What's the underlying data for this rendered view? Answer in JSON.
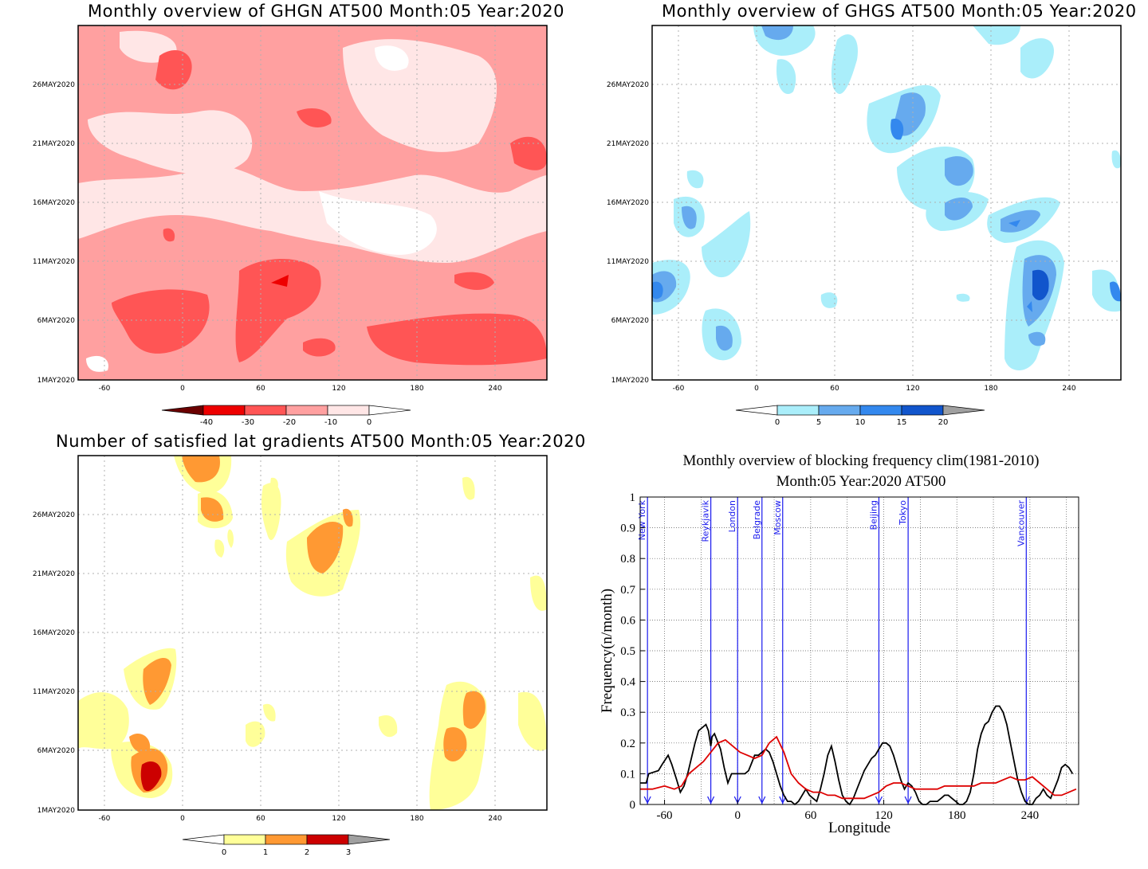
{
  "panels": {
    "ghgn": {
      "title": "Monthly overview of GHGN AT500 Month:05 Year:2020",
      "ylabels": [
        "26MAY2020",
        "21MAY2020",
        "16MAY2020",
        "11MAY2020",
        "6MAY2020",
        "1MAY2020"
      ],
      "xlabels": [
        "-60",
        "0",
        "60",
        "120",
        "180",
        "240"
      ],
      "colorbar": {
        "labels": [
          "-40",
          "-30",
          "-20",
          "-10",
          "0"
        ],
        "colors": [
          "#6b0000",
          "#ee0000",
          "#ff5555",
          "#ffa0a0",
          "#ffe6e6",
          "#ffffff"
        ]
      }
    },
    "ghgs": {
      "title": "Monthly overview of GHGS AT500 Month:05 Year:2020",
      "ylabels": [
        "26MAY2020",
        "21MAY2020",
        "16MAY2020",
        "11MAY2020",
        "6MAY2020",
        "1MAY2020"
      ],
      "xlabels": [
        "-60",
        "0",
        "60",
        "120",
        "180",
        "240"
      ],
      "colorbar": {
        "labels": [
          "0",
          "5",
          "10",
          "15",
          "20"
        ],
        "colors": [
          "#ffffff",
          "#aaeefa",
          "#66aaee",
          "#3388ee",
          "#1155cc",
          "#a0a0a0"
        ]
      }
    },
    "latgrad": {
      "title": "Number of satisfied lat gradients AT500 Month:05 Year:2020",
      "ylabels": [
        "26MAY2020",
        "21MAY2020",
        "16MAY2020",
        "11MAY2020",
        "6MAY2020",
        "1MAY2020"
      ],
      "xlabels": [
        "-60",
        "0",
        "60",
        "120",
        "180",
        "240"
      ],
      "colorbar": {
        "labels": [
          "0",
          "1",
          "2",
          "3"
        ],
        "colors": [
          "#ffffff",
          "#ffff99",
          "#ff9933",
          "#cc0000",
          "#a0a0a0"
        ]
      }
    },
    "blocking": {
      "title_line1": "Monthly overview of blocking frequency clim(1981-2010)",
      "title_line2": "Month:05 Year:2020  AT500"
    }
  },
  "chart_data": [
    {
      "type": "heatmap",
      "title": "Monthly overview of GHGN AT500 Month:05 Year:2020",
      "x_ticks": [
        -60,
        0,
        60,
        120,
        180,
        240
      ],
      "xlim": [
        -80,
        280
      ],
      "y_ticks": [
        "1MAY2020",
        "6MAY2020",
        "11MAY2020",
        "16MAY2020",
        "21MAY2020",
        "26MAY2020"
      ],
      "levels": [
        -40,
        -30,
        -20,
        -10,
        0
      ]
    },
    {
      "type": "heatmap",
      "title": "Monthly overview of GHGS AT500 Month:05 Year:2020",
      "x_ticks": [
        -60,
        0,
        60,
        120,
        180,
        240
      ],
      "xlim": [
        -80,
        280
      ],
      "y_ticks": [
        "1MAY2020",
        "6MAY2020",
        "11MAY2020",
        "16MAY2020",
        "21MAY2020",
        "26MAY2020"
      ],
      "levels": [
        0,
        5,
        10,
        15,
        20
      ]
    },
    {
      "type": "heatmap",
      "title": "Number of satisfied lat gradients AT500 Month:05 Year:2020",
      "x_ticks": [
        -60,
        0,
        60,
        120,
        180,
        240
      ],
      "xlim": [
        -80,
        280
      ],
      "y_ticks": [
        "1MAY2020",
        "6MAY2020",
        "11MAY2020",
        "16MAY2020",
        "21MAY2020",
        "26MAY2020"
      ],
      "levels": [
        0,
        1,
        2,
        3
      ]
    },
    {
      "type": "line",
      "title": "Monthly overview of blocking frequency clim(1981-2010) Month:05 Year:2020  AT500",
      "xlabel": "Longitude",
      "ylabel": "Frequency(n/month)",
      "xlim": [
        -80,
        280
      ],
      "ylim": [
        0,
        1
      ],
      "x_ticks": [
        -60,
        0,
        60,
        120,
        180,
        240
      ],
      "y_ticks": [
        0,
        0.1,
        0.2,
        0.3,
        0.4,
        0.5,
        0.6,
        0.7,
        0.8,
        0.9,
        1
      ],
      "grid": true,
      "cities": [
        {
          "name": "New York",
          "lon": -74
        },
        {
          "name": "Reykjavik",
          "lon": -22
        },
        {
          "name": "London",
          "lon": 0
        },
        {
          "name": "Belgrade",
          "lon": 20
        },
        {
          "name": "Moscow",
          "lon": 37
        },
        {
          "name": "Beijing",
          "lon": 116
        },
        {
          "name": "Tokyo",
          "lon": 140
        },
        {
          "name": "Vancouver",
          "lon": 237
        }
      ],
      "series": [
        {
          "color": "#000000",
          "x": [
            -80,
            -75,
            -73,
            -65,
            -62,
            -57,
            -54,
            -50,
            -47,
            -44,
            -41,
            -38,
            -35,
            -32,
            -29,
            -26,
            -24,
            -22,
            -21,
            -19,
            -17,
            -14,
            -11,
            -8,
            -5,
            -2,
            0,
            3,
            6,
            9,
            12,
            14,
            17,
            20,
            23,
            26,
            29,
            32,
            35,
            38,
            41,
            44,
            47,
            50,
            53,
            56,
            59,
            62,
            65,
            68,
            71,
            74,
            77,
            80,
            83,
            86,
            89,
            92,
            95,
            98,
            101,
            104,
            107,
            110,
            113,
            116,
            119,
            122,
            125,
            128,
            131,
            134,
            137,
            140,
            143,
            146,
            149,
            152,
            155,
            158,
            161,
            164,
            167,
            170,
            173,
            176,
            179,
            182,
            185,
            188,
            191,
            194,
            197,
            200,
            203,
            206,
            209,
            212,
            215,
            218,
            221,
            224,
            227,
            230,
            233,
            236,
            239,
            242,
            245,
            248,
            251,
            254,
            257,
            260,
            263,
            266,
            269,
            272,
            275
          ],
          "y": [
            0.07,
            0.07,
            0.1,
            0.11,
            0.13,
            0.16,
            0.13,
            0.08,
            0.04,
            0.06,
            0.1,
            0.15,
            0.2,
            0.24,
            0.25,
            0.26,
            0.24,
            0.19,
            0.22,
            0.23,
            0.21,
            0.18,
            0.12,
            0.07,
            0.1,
            0.1,
            0.1,
            0.1,
            0.1,
            0.11,
            0.14,
            0.16,
            0.16,
            0.17,
            0.18,
            0.17,
            0.14,
            0.1,
            0.06,
            0.03,
            0.01,
            0.01,
            0.0,
            0.01,
            0.03,
            0.05,
            0.03,
            0.02,
            0.01,
            0.05,
            0.1,
            0.16,
            0.19,
            0.14,
            0.08,
            0.03,
            0.01,
            0.0,
            0.02,
            0.05,
            0.08,
            0.11,
            0.13,
            0.15,
            0.16,
            0.18,
            0.2,
            0.2,
            0.19,
            0.16,
            0.12,
            0.08,
            0.05,
            0.07,
            0.06,
            0.04,
            0.01,
            0.0,
            0.0,
            0.01,
            0.01,
            0.01,
            0.02,
            0.03,
            0.03,
            0.02,
            0.01,
            0.0,
            0.0,
            0.01,
            0.04,
            0.1,
            0.18,
            0.23,
            0.26,
            0.27,
            0.3,
            0.32,
            0.32,
            0.3,
            0.26,
            0.2,
            0.14,
            0.08,
            0.04,
            0.01,
            0.0,
            0.0,
            0.02,
            0.03,
            0.05,
            0.03,
            0.02,
            0.05,
            0.08,
            0.12,
            0.13,
            0.12,
            0.1
          ]
        },
        {
          "color": "#dd0000",
          "x": [
            -80,
            -70,
            -60,
            -52,
            -46,
            -40,
            -34,
            -28,
            -22,
            -16,
            -10,
            -4,
            2,
            8,
            14,
            20,
            26,
            32,
            38,
            44,
            50,
            56,
            62,
            68,
            74,
            80,
            86,
            92,
            98,
            104,
            110,
            116,
            122,
            128,
            134,
            140,
            146,
            152,
            158,
            164,
            170,
            176,
            182,
            188,
            194,
            200,
            206,
            212,
            218,
            224,
            230,
            236,
            242,
            248,
            254,
            260,
            266,
            272,
            278
          ],
          "y": [
            0.05,
            0.05,
            0.06,
            0.05,
            0.06,
            0.1,
            0.12,
            0.14,
            0.17,
            0.2,
            0.21,
            0.19,
            0.17,
            0.16,
            0.15,
            0.16,
            0.2,
            0.22,
            0.17,
            0.1,
            0.07,
            0.05,
            0.04,
            0.04,
            0.03,
            0.03,
            0.02,
            0.02,
            0.02,
            0.02,
            0.03,
            0.04,
            0.06,
            0.07,
            0.07,
            0.06,
            0.05,
            0.05,
            0.05,
            0.05,
            0.06,
            0.06,
            0.06,
            0.06,
            0.06,
            0.07,
            0.07,
            0.07,
            0.08,
            0.09,
            0.08,
            0.08,
            0.09,
            0.07,
            0.05,
            0.03,
            0.03,
            0.04,
            0.05
          ]
        }
      ]
    }
  ]
}
